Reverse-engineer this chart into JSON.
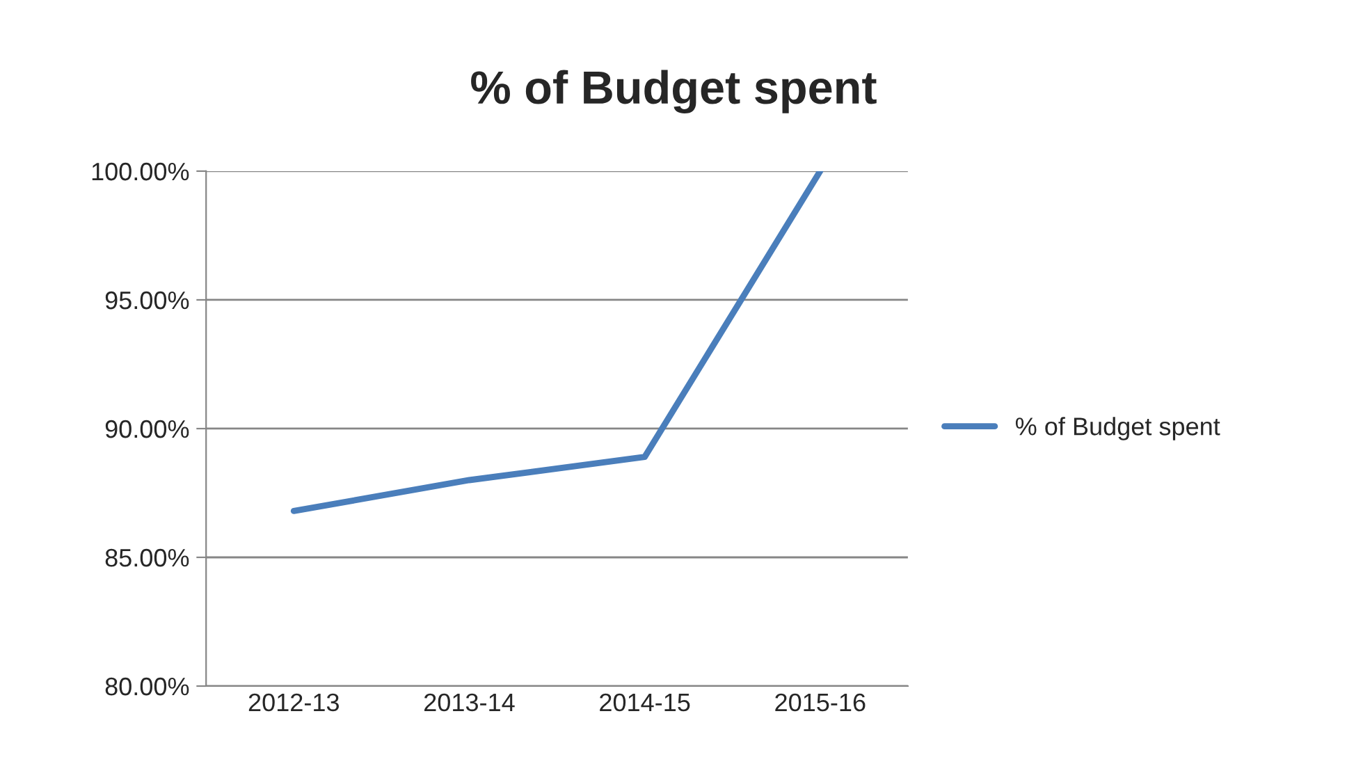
{
  "chart_data": {
    "type": "line",
    "title": "% of Budget spent",
    "categories": [
      "2012-13",
      "2013-14",
      "2014-15",
      "2015-16"
    ],
    "series": [
      {
        "name": "% of Budget spent",
        "color": "#4a7ebb",
        "values": [
          86.8,
          88.0,
          88.9,
          100.0
        ]
      }
    ],
    "ylim": [
      80,
      100
    ],
    "yticks": [
      {
        "value": 80,
        "label": "80.00%"
      },
      {
        "value": 85,
        "label": "85.00%"
      },
      {
        "value": 90,
        "label": "90.00%"
      },
      {
        "value": 95,
        "label": "95.00%"
      },
      {
        "value": 100,
        "label": "100.00%"
      }
    ],
    "grid": "y",
    "legend": "right",
    "marker": "none",
    "line_style": "solid"
  }
}
